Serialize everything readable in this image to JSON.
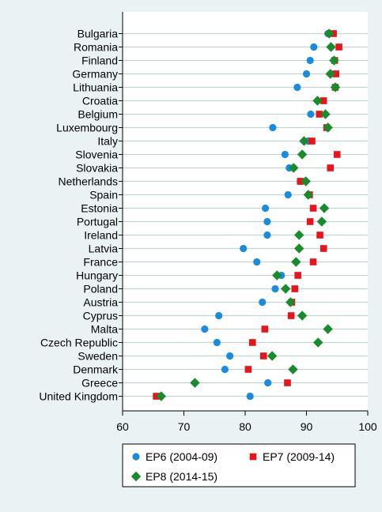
{
  "chart_data": {
    "type": "scatter",
    "orientation": "horizontal-dot-plot",
    "title": "",
    "xlabel": "",
    "ylabel": "",
    "xlim": [
      60,
      100
    ],
    "x_ticks": [
      60,
      70,
      80,
      90,
      100
    ],
    "categories": [
      "Bulgaria",
      "Romania",
      "Finland",
      "Germany",
      "Lithuania",
      "Croatia",
      "Belgium",
      "Luxembourg",
      "Italy",
      "Slovenia",
      "Slovakia",
      "Netherlands",
      "Spain",
      "Estonia",
      "Portugal",
      "Ireland",
      "Latvia",
      "France",
      "Hungary",
      "Poland",
      "Austria",
      "Cyprus",
      "Malta",
      "Czech Republic",
      "Sweden",
      "Denmark",
      "Greece",
      "United Kingdom"
    ],
    "series": [
      {
        "name": "EP6 (2004-09)",
        "marker": "circle",
        "color": "#1a8ce0",
        "values": [
          93.5,
          91.2,
          90.6,
          90.0,
          88.5,
          null,
          90.7,
          84.5,
          90.3,
          86.5,
          87.2,
          89.0,
          87.0,
          83.3,
          83.6,
          83.6,
          79.7,
          81.9,
          85.9,
          84.9,
          82.8,
          75.7,
          73.4,
          75.4,
          77.5,
          76.7,
          83.7,
          80.8
        ]
      },
      {
        "name": "EP7 (2009-14)",
        "marker": "square",
        "color": "#e8141a",
        "values": [
          94.4,
          95.3,
          94.6,
          94.8,
          94.7,
          92.8,
          92.1,
          93.3,
          90.9,
          95.0,
          93.9,
          89.0,
          90.5,
          91.1,
          90.6,
          92.2,
          92.8,
          91.1,
          88.6,
          88.1,
          87.6,
          87.5,
          83.2,
          81.2,
          83.0,
          80.5,
          86.9,
          65.5
        ]
      },
      {
        "name": "EP8 (2014-15)",
        "marker": "diamond",
        "color": "#168c2a",
        "values": [
          93.7,
          94.0,
          94.5,
          93.9,
          94.7,
          91.8,
          93.1,
          93.5,
          89.6,
          89.3,
          87.9,
          89.9,
          90.3,
          92.9,
          92.5,
          88.8,
          88.8,
          88.3,
          85.2,
          86.6,
          87.4,
          89.3,
          93.5,
          91.9,
          84.4,
          87.8,
          71.8,
          66.3
        ]
      }
    ],
    "grid": "horizontal",
    "legend": {
      "placement": "bottom",
      "entries": [
        "EP6 (2004-09)",
        "EP7 (2009-14)",
        "EP8 (2014-15)"
      ]
    }
  },
  "colors": {
    "outer_background": "#eaf2f3",
    "plot_background": "#ffffff",
    "grid_line": "#c4d3d6"
  }
}
